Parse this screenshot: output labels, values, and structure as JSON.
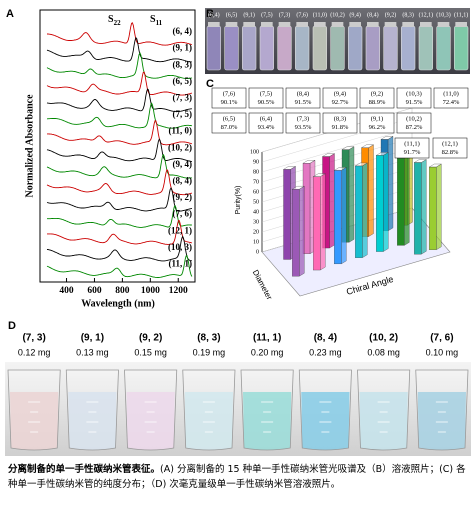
{
  "panel_labels": [
    "A",
    "B",
    "C",
    "D"
  ],
  "chart_data": [
    {
      "type": "spectra",
      "xlabel": "Wavelength (nm)",
      "ylabel": "Normalized Absorbance",
      "xlim": [
        210,
        1320
      ],
      "xticks": [
        400,
        600,
        800,
        1000,
        1200
      ],
      "annotations": [
        {
          "text": "S",
          "sub": "22"
        },
        {
          "text": "S",
          "sub": "11"
        }
      ],
      "series_labels": [
        "(6, 4)",
        "(9, 1)",
        "(8, 3)",
        "(6, 5)",
        "(7, 3)",
        "(7, 5)",
        "(11, 0)",
        "(10, 2)",
        "(9, 4)",
        "(8, 4)",
        "(9, 2)",
        "(7, 6)",
        "(12, 1)",
        "(10, 3)",
        "(11, 1)"
      ],
      "colors": [
        "#cc0000",
        "#000000",
        "#008800"
      ]
    },
    {
      "type": "bar3d",
      "ylabel": "Purity(%)",
      "xlabel": "Chiral Angle",
      "zlabel": "Diameter",
      "ylim": [
        0,
        100
      ],
      "yticks": [
        0,
        10,
        20,
        30,
        40,
        50,
        60,
        70,
        80,
        90,
        100
      ],
      "categories": [
        "(7,6)",
        "(7,5)",
        "(8,4)",
        "(9,4)",
        "(9,2)",
        "(10,3)",
        "(11,0)",
        "(6,5)",
        "(6,4)",
        "(7,3)",
        "(8,3)",
        "(9,1)",
        "(10,2)",
        "(11,1)",
        "(12,1)"
      ],
      "values": [
        90.1,
        90.5,
        91.5,
        92.7,
        88.9,
        91.5,
        72.4,
        87.0,
        93.4,
        93.5,
        91.8,
        96.2,
        87.2,
        91.7,
        82.8
      ],
      "value_labels": [
        "90.1%",
        "90.5%",
        "91.5%",
        "92.7%",
        "88.9%",
        "91.5%",
        "72.4%",
        "87.0%",
        "93.4%",
        "93.5%",
        "91.8%",
        "96.2%",
        "87.2%",
        "91.7%",
        "82.8%"
      ],
      "colors": [
        "#8e44ad",
        "#e377c2",
        "#c71585",
        "#2e8b57",
        "#ff8c00",
        "#1f77b4",
        "#bcbd22",
        "#9b59b6",
        "#ff69b4",
        "#3399ff",
        "#17becf",
        "#00ced1",
        "#228b22",
        "#20b2aa",
        "#9acd32"
      ]
    }
  ],
  "vials": [
    {
      "label": "(6,4)",
      "color": "#8f86b8"
    },
    {
      "label": "(6,5)",
      "color": "#9a8fc4"
    },
    {
      "label": "(9,1)",
      "color": "#a9a6c9"
    },
    {
      "label": "(7,5)",
      "color": "#b4a8cf"
    },
    {
      "label": "(7,3)",
      "color": "#c7a9c8"
    },
    {
      "label": "(7,6)",
      "color": "#a7b6c6"
    },
    {
      "label": "(11,0)",
      "color": "#b9bfb4"
    },
    {
      "label": "(10,2)",
      "color": "#9fbab0"
    },
    {
      "label": "(9,4)",
      "color": "#9fa8c7"
    },
    {
      "label": "(8,4)",
      "color": "#a89dc4"
    },
    {
      "label": "(9,2)",
      "color": "#b6b3cf"
    },
    {
      "label": "(8,3)",
      "color": "#a7b0cf"
    },
    {
      "label": "(12,1)",
      "color": "#9fc2b8"
    },
    {
      "label": "(10,3)",
      "color": "#8fc5b7"
    },
    {
      "label": "(11,1)",
      "color": "#7fc9a8"
    }
  ],
  "beakers": [
    {
      "label": "(7, 3)",
      "mass": "0.12 mg",
      "color": "#e6c9c9"
    },
    {
      "label": "(9, 1)",
      "mass": "0.13 mg",
      "color": "#cfdcea"
    },
    {
      "label": "(9, 2)",
      "mass": "0.15 mg",
      "color": "#e9cfe6"
    },
    {
      "label": "(8, 3)",
      "mass": "0.19 mg",
      "color": "#c7e3ea"
    },
    {
      "label": "(11, 1)",
      "mass": "0.20 mg",
      "color": "#7fd3cf"
    },
    {
      "label": "(8, 4)",
      "mass": "0.23 mg",
      "color": "#67bfe0"
    },
    {
      "label": "(10, 2)",
      "mass": "0.08 mg",
      "color": "#b6dce6"
    },
    {
      "label": "(7, 6)",
      "mass": "0.10 mg",
      "color": "#8fc6dc"
    }
  ],
  "caption": {
    "bold": "分离制备的单一手性碳纳米管表征。",
    "text": "(A) 分离制备的 15 种单一手性碳纳米管光吸谱及（B）溶液照片；(C) 各种单一手性碳纳米管的纯度分布；（D) 次毫克量级单一手性碳纳米管溶液照片。"
  }
}
